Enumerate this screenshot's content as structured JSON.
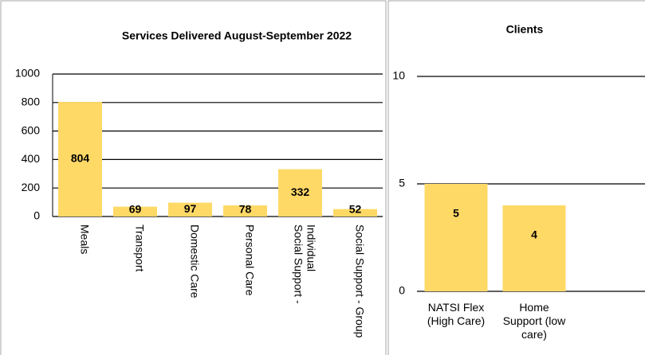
{
  "chart_data": [
    {
      "type": "bar",
      "title": "Services Delivered August-September 2022",
      "categories": [
        "Meals",
        "Transport",
        "Domestic Care",
        "Personal Care",
        "Social Support - Individual",
        "Social Support - Group"
      ],
      "values": [
        804,
        69,
        97,
        78,
        332,
        52
      ],
      "color": "#ffd966",
      "ylim": [
        0,
        1000
      ],
      "yticks": [
        0,
        200,
        400,
        600,
        800,
        1000
      ],
      "grid": true
    },
    {
      "type": "bar",
      "title": "Clients",
      "categories": [
        "NATSI Flex (High Care)",
        "Home Support (low care)"
      ],
      "values": [
        5,
        4
      ],
      "color": "#ffd966",
      "ylim": [
        0,
        10
      ],
      "yticks": [
        0,
        5,
        10
      ],
      "grid": true
    }
  ]
}
